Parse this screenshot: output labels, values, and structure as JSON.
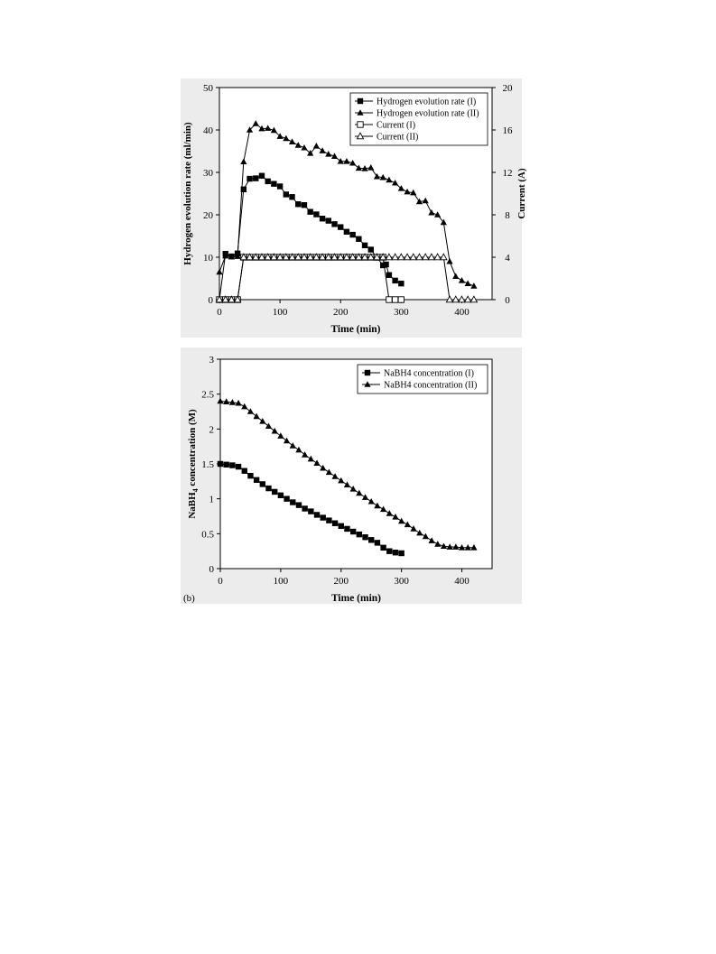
{
  "chart_data": [
    {
      "type": "line",
      "xlabel": "Time (min)",
      "ylabel": "Hydrogen evolution rate (ml/min)",
      "y2label": "Current (A)",
      "xlim": [
        0,
        450
      ],
      "ylim": [
        0,
        50
      ],
      "y2lim": [
        0,
        20
      ],
      "xticks": [
        0,
        100,
        200,
        300,
        400
      ],
      "yticks": [
        0,
        10,
        20,
        30,
        40,
        50
      ],
      "y2ticks": [
        0,
        4,
        8,
        12,
        16,
        20
      ],
      "legend_position": "top-right",
      "series": [
        {
          "name": "Hydrogen evolution rate (I)",
          "axis": "left",
          "marker": "square-filled",
          "x": [
            0,
            10,
            20,
            30,
            40,
            50,
            60,
            70,
            80,
            90,
            100,
            110,
            120,
            130,
            140,
            150,
            160,
            170,
            180,
            190,
            200,
            210,
            220,
            230,
            240,
            250,
            260,
            270,
            275,
            280,
            290,
            300
          ],
          "y": [
            0,
            10.8,
            10.2,
            10.9,
            26,
            28.5,
            28.6,
            29.2,
            27.9,
            27.3,
            26.7,
            24.8,
            24.2,
            22.5,
            22.3,
            20.7,
            20.1,
            19.1,
            18.6,
            17.8,
            17.1,
            16.0,
            15.3,
            14.3,
            12.8,
            11.8,
            9.9,
            8.1,
            8.3,
            5.8,
            4.5,
            3.8
          ]
        },
        {
          "name": "Hydrogen evolution rate (II)",
          "axis": "left",
          "marker": "triangle-filled",
          "x": [
            0,
            10,
            20,
            30,
            40,
            50,
            60,
            70,
            80,
            90,
            100,
            110,
            120,
            130,
            140,
            150,
            160,
            170,
            180,
            190,
            200,
            210,
            220,
            230,
            240,
            250,
            260,
            270,
            280,
            290,
            300,
            310,
            320,
            330,
            340,
            350,
            360,
            370,
            380,
            390,
            400,
            410,
            420
          ],
          "y": [
            6.5,
            10.3,
            10.1,
            10.2,
            32.5,
            40.0,
            41.5,
            40.3,
            40.4,
            39.9,
            38.5,
            38.0,
            37.2,
            36.4,
            35.8,
            34.5,
            36.2,
            35.1,
            34.3,
            33.8,
            32.6,
            32.6,
            32.2,
            31.0,
            30.9,
            31.1,
            29.0,
            28.8,
            28.2,
            27.5,
            26.2,
            25.4,
            25.2,
            23.1,
            23.3,
            20.5,
            20.0,
            18.2,
            9.0,
            5.5,
            4.5,
            3.8,
            3.2
          ]
        },
        {
          "name": "Current (I)",
          "axis": "right",
          "marker": "square-open",
          "x": [
            0,
            10,
            20,
            30,
            40,
            50,
            60,
            70,
            80,
            90,
            100,
            110,
            120,
            130,
            140,
            150,
            160,
            170,
            180,
            190,
            200,
            210,
            220,
            230,
            240,
            250,
            260,
            270,
            280,
            290,
            300
          ],
          "y": [
            0,
            0,
            0,
            0,
            4,
            4,
            4,
            4,
            4,
            4,
            4,
            4,
            4,
            4,
            4,
            4,
            4,
            4,
            4,
            4,
            4,
            4,
            4,
            4,
            4,
            4,
            4,
            4,
            0,
            0,
            0
          ]
        },
        {
          "name": "Current (II)",
          "axis": "right",
          "marker": "triangle-open",
          "x": [
            0,
            10,
            20,
            30,
            40,
            50,
            60,
            70,
            80,
            90,
            100,
            110,
            120,
            130,
            140,
            150,
            160,
            170,
            180,
            190,
            200,
            210,
            220,
            230,
            240,
            250,
            260,
            270,
            280,
            290,
            300,
            310,
            320,
            330,
            340,
            350,
            360,
            370,
            380,
            390,
            400,
            410,
            420
          ],
          "y": [
            0,
            0,
            0,
            0,
            4,
            4,
            4,
            4,
            4,
            4,
            4,
            4,
            4,
            4,
            4,
            4,
            4,
            4,
            4,
            4,
            4,
            4,
            4,
            4,
            4,
            4,
            4,
            4,
            4,
            4,
            4,
            4,
            4,
            4,
            4,
            4,
            4,
            4,
            0,
            0,
            0,
            0,
            0
          ]
        }
      ]
    },
    {
      "type": "line",
      "panel_label": "(b)",
      "xlabel": "Time (min)",
      "ylabel_prefix": "NaBH",
      "ylabel_sub": "4",
      "ylabel_suffix": " concentration (M)",
      "xlim": [
        0,
        450
      ],
      "ylim": [
        0,
        3
      ],
      "xticks": [
        0,
        100,
        200,
        300,
        400
      ],
      "yticks": [
        0,
        0.5,
        1,
        1.5,
        2,
        2.5,
        3
      ],
      "ytick_labels": [
        "0",
        "0.5",
        "1",
        "1.5",
        "2",
        "2.5",
        "3"
      ],
      "legend_position": "top-right",
      "series": [
        {
          "name": "NaBH4 concentration (I)",
          "marker": "square-filled",
          "x": [
            0,
            10,
            20,
            30,
            40,
            50,
            60,
            70,
            80,
            90,
            100,
            110,
            120,
            130,
            140,
            150,
            160,
            170,
            180,
            190,
            200,
            210,
            220,
            230,
            240,
            250,
            260,
            270,
            280,
            290,
            300
          ],
          "y": [
            1.5,
            1.49,
            1.48,
            1.46,
            1.4,
            1.33,
            1.27,
            1.21,
            1.15,
            1.1,
            1.05,
            1.0,
            0.95,
            0.91,
            0.86,
            0.82,
            0.77,
            0.73,
            0.69,
            0.65,
            0.61,
            0.57,
            0.53,
            0.49,
            0.45,
            0.41,
            0.37,
            0.3,
            0.25,
            0.23,
            0.22
          ]
        },
        {
          "name": "NaBH4 concentration (II)",
          "marker": "triangle-filled",
          "x": [
            0,
            10,
            20,
            30,
            40,
            50,
            60,
            70,
            80,
            90,
            100,
            110,
            120,
            130,
            140,
            150,
            160,
            170,
            180,
            190,
            200,
            210,
            220,
            230,
            240,
            250,
            260,
            270,
            280,
            290,
            300,
            310,
            320,
            330,
            340,
            350,
            360,
            370,
            380,
            390,
            400,
            410,
            420
          ],
          "y": [
            2.4,
            2.39,
            2.38,
            2.37,
            2.32,
            2.25,
            2.18,
            2.11,
            2.04,
            1.97,
            1.9,
            1.83,
            1.76,
            1.7,
            1.63,
            1.57,
            1.51,
            1.44,
            1.38,
            1.32,
            1.26,
            1.2,
            1.14,
            1.08,
            1.02,
            0.96,
            0.9,
            0.85,
            0.79,
            0.74,
            0.68,
            0.63,
            0.57,
            0.51,
            0.46,
            0.4,
            0.35,
            0.32,
            0.31,
            0.31,
            0.3,
            0.3,
            0.3
          ]
        }
      ]
    }
  ]
}
